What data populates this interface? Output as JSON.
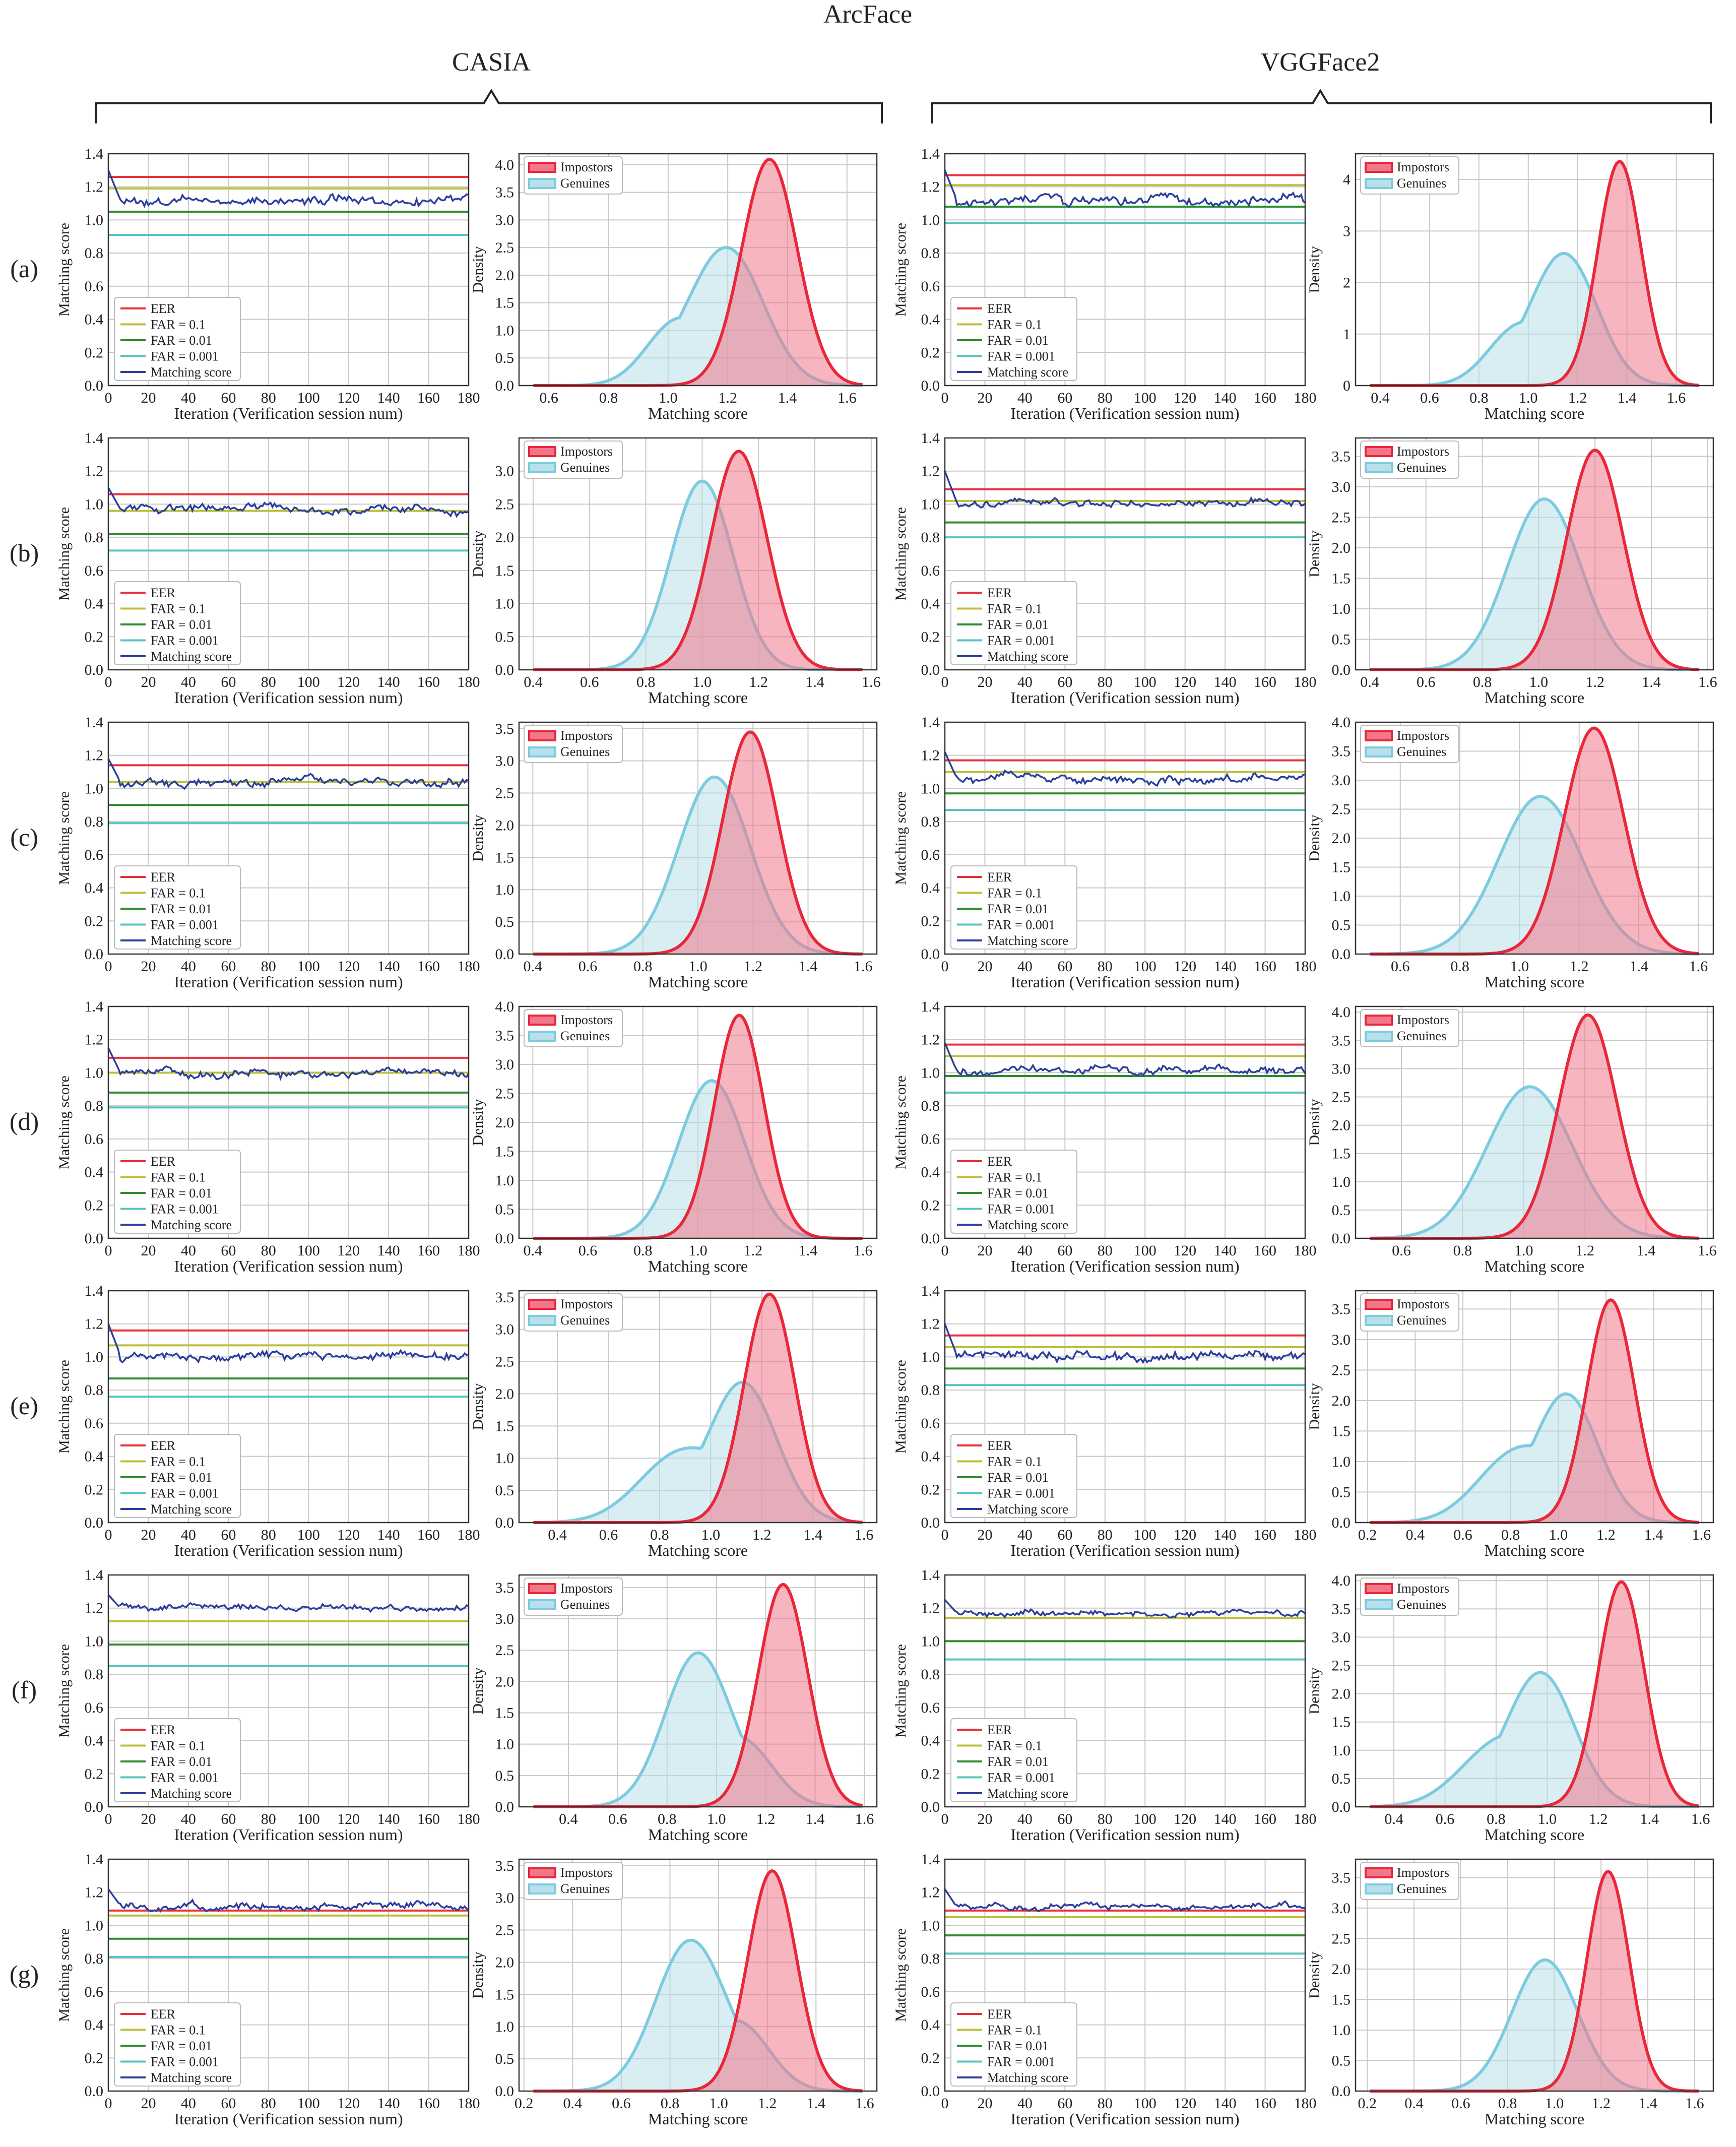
{
  "figure": {
    "title": "ArcFace",
    "groups": [
      "CASIA",
      "VGGFace2"
    ],
    "row_labels": [
      "(a)",
      "(b)",
      "(c)",
      "(d)",
      "(e)",
      "(f)",
      "(g)"
    ]
  },
  "colors": {
    "eer": "#e8303c",
    "far01": "#bcbf3a",
    "far001": "#2e8b2e",
    "far0001": "#55c4c0",
    "matching": "#2b3f9c",
    "impostor_fill": "#f0788a",
    "impostor_line": "#e8283a",
    "genuine_fill": "#b8e0ea",
    "genuine_line": "#7ecbe0",
    "grid": "#c8c8c8"
  },
  "line_axes": {
    "xlabel": "Iteration (Verification session num)",
    "ylabel": "Matching score",
    "xticks": [
      0,
      20,
      40,
      60,
      80,
      100,
      120,
      140,
      160,
      180
    ],
    "yticks": [
      0.0,
      0.2,
      0.4,
      0.6,
      0.8,
      1.0,
      1.2,
      1.4
    ],
    "xlim": [
      0,
      180
    ],
    "ylim": [
      0,
      1.4
    ],
    "legend": [
      "EER",
      "FAR = 0.1",
      "FAR = 0.01",
      "FAR = 0.001",
      "Matching score"
    ]
  },
  "density_axes": {
    "xlabel": "Matching score",
    "ylabel": "Density",
    "legend": [
      "Impostors",
      "Genuines"
    ]
  },
  "chart_data": [
    {
      "type": "line",
      "group": "CASIA",
      "row": "(a)",
      "thresholds": {
        "eer": 1.26,
        "far_0_1": 1.19,
        "far_0_01": 1.05,
        "far_0_001": 0.91
      },
      "matching_score": {
        "start": 1.3,
        "level": 1.12,
        "amp": 0.03
      }
    },
    {
      "type": "area",
      "group": "CASIA",
      "row": "(a)",
      "xlim": [
        0.5,
        1.7
      ],
      "xticks": [
        0.6,
        0.8,
        1.0,
        1.2,
        1.4,
        1.6
      ],
      "ylim": [
        0,
        4.2
      ],
      "yticks": [
        0.0,
        0.5,
        1.0,
        1.5,
        2.0,
        2.5,
        3.0,
        3.5,
        4.0
      ],
      "impostors": {
        "mu": 1.34,
        "sigma": 0.093,
        "peak": 4.1
      },
      "genuines": {
        "mu": 1.2,
        "sigma": 0.12,
        "peak": 2.45,
        "mu2": 1.02,
        "sigma2": 0.1,
        "peak2": 1.0
      }
    },
    {
      "type": "line",
      "group": "VGGFace2",
      "row": "(a)",
      "thresholds": {
        "eer": 1.27,
        "far_0_1": 1.21,
        "far_0_01": 1.08,
        "far_0_001": 0.98
      },
      "matching_score": {
        "start": 1.3,
        "level": 1.12,
        "amp": 0.03
      }
    },
    {
      "type": "area",
      "group": "VGGFace2",
      "row": "(a)",
      "xlim": [
        0.3,
        1.75
      ],
      "xticks": [
        0.4,
        0.6,
        0.8,
        1.0,
        1.2,
        1.4,
        1.6
      ],
      "ylim": [
        0,
        4.5
      ],
      "yticks": [
        0,
        1,
        2,
        3,
        4
      ],
      "impostors": {
        "mu": 1.37,
        "sigma": 0.088,
        "peak": 4.35
      },
      "genuines": {
        "mu": 1.15,
        "sigma": 0.13,
        "peak": 2.5,
        "mu2": 0.95,
        "sigma2": 0.12,
        "peak2": 1.0
      }
    },
    {
      "type": "line",
      "group": "CASIA",
      "row": "(b)",
      "thresholds": {
        "eer": 1.06,
        "far_0_1": 0.96,
        "far_0_01": 0.82,
        "far_0_001": 0.72
      },
      "matching_score": {
        "start": 1.1,
        "level": 0.97,
        "amp": 0.025
      }
    },
    {
      "type": "area",
      "group": "CASIA",
      "row": "(b)",
      "xlim": [
        0.35,
        1.62
      ],
      "xticks": [
        0.4,
        0.6,
        0.8,
        1.0,
        1.2,
        1.4,
        1.6
      ],
      "ylim": [
        0,
        3.5
      ],
      "yticks": [
        0.0,
        0.5,
        1.0,
        1.5,
        2.0,
        2.5,
        3.0
      ],
      "impostors": {
        "mu": 1.13,
        "sigma": 0.1,
        "peak": 3.3
      },
      "genuines": {
        "mu": 1.0,
        "sigma": 0.11,
        "peak": 2.85
      }
    },
    {
      "type": "line",
      "group": "VGGFace2",
      "row": "(b)",
      "thresholds": {
        "eer": 1.09,
        "far_0_1": 1.02,
        "far_0_01": 0.89,
        "far_0_001": 0.8
      },
      "matching_score": {
        "start": 1.2,
        "level": 1.01,
        "amp": 0.025
      }
    },
    {
      "type": "area",
      "group": "VGGFace2",
      "row": "(b)",
      "xlim": [
        0.35,
        1.62
      ],
      "xticks": [
        0.4,
        0.6,
        0.8,
        1.0,
        1.2,
        1.4,
        1.6
      ],
      "ylim": [
        0,
        3.8
      ],
      "yticks": [
        0.0,
        0.5,
        1.0,
        1.5,
        2.0,
        2.5,
        3.0,
        3.5
      ],
      "impostors": {
        "mu": 1.2,
        "sigma": 0.1,
        "peak": 3.6
      },
      "genuines": {
        "mu": 1.02,
        "sigma": 0.13,
        "peak": 2.8
      }
    },
    {
      "type": "line",
      "group": "CASIA",
      "row": "(c)",
      "thresholds": {
        "eer": 1.14,
        "far_0_1": 1.04,
        "far_0_01": 0.9,
        "far_0_001": 0.79
      },
      "matching_score": {
        "start": 1.18,
        "level": 1.04,
        "amp": 0.025
      }
    },
    {
      "type": "area",
      "group": "CASIA",
      "row": "(c)",
      "xlim": [
        0.35,
        1.65
      ],
      "xticks": [
        0.4,
        0.6,
        0.8,
        1.0,
        1.2,
        1.4,
        1.6
      ],
      "ylim": [
        0,
        3.6
      ],
      "yticks": [
        0.0,
        0.5,
        1.0,
        1.5,
        2.0,
        2.5,
        3.0,
        3.5
      ],
      "impostors": {
        "mu": 1.19,
        "sigma": 0.1,
        "peak": 3.45
      },
      "genuines": {
        "mu": 1.06,
        "sigma": 0.13,
        "peak": 2.75
      }
    },
    {
      "type": "line",
      "group": "VGGFace2",
      "row": "(c)",
      "thresholds": {
        "eer": 1.17,
        "far_0_1": 1.1,
        "far_0_01": 0.97,
        "far_0_001": 0.87
      },
      "matching_score": {
        "start": 1.22,
        "level": 1.06,
        "amp": 0.025
      }
    },
    {
      "type": "area",
      "group": "VGGFace2",
      "row": "(c)",
      "xlim": [
        0.45,
        1.65
      ],
      "xticks": [
        0.6,
        0.8,
        1.0,
        1.2,
        1.4,
        1.6
      ],
      "ylim": [
        0,
        4.0
      ],
      "yticks": [
        0.0,
        0.5,
        1.0,
        1.5,
        2.0,
        2.5,
        3.0,
        3.5,
        4.0
      ],
      "impostors": {
        "mu": 1.25,
        "sigma": 0.1,
        "peak": 3.9
      },
      "genuines": {
        "mu": 1.07,
        "sigma": 0.14,
        "peak": 2.72
      }
    },
    {
      "type": "line",
      "group": "CASIA",
      "row": "(d)",
      "thresholds": {
        "eer": 1.09,
        "far_0_1": 1.0,
        "far_0_01": 0.88,
        "far_0_001": 0.79
      },
      "matching_score": {
        "start": 1.15,
        "level": 1.0,
        "amp": 0.025
      }
    },
    {
      "type": "area",
      "group": "CASIA",
      "row": "(d)",
      "xlim": [
        0.35,
        1.65
      ],
      "xticks": [
        0.4,
        0.6,
        0.8,
        1.0,
        1.2,
        1.4,
        1.6
      ],
      "ylim": [
        0,
        4.0
      ],
      "yticks": [
        0.0,
        0.5,
        1.0,
        1.5,
        2.0,
        2.5,
        3.0,
        3.5,
        4.0
      ],
      "impostors": {
        "mu": 1.15,
        "sigma": 0.09,
        "peak": 3.85
      },
      "genuines": {
        "mu": 1.05,
        "sigma": 0.12,
        "peak": 2.72
      }
    },
    {
      "type": "line",
      "group": "VGGFace2",
      "row": "(d)",
      "thresholds": {
        "eer": 1.17,
        "far_0_1": 1.1,
        "far_0_01": 0.98,
        "far_0_001": 0.88
      },
      "matching_score": {
        "start": 1.18,
        "level": 1.01,
        "amp": 0.025
      }
    },
    {
      "type": "area",
      "group": "VGGFace2",
      "row": "(d)",
      "xlim": [
        0.45,
        1.62
      ],
      "xticks": [
        0.6,
        0.8,
        1.0,
        1.2,
        1.4,
        1.6
      ],
      "ylim": [
        0,
        4.1
      ],
      "yticks": [
        0.0,
        0.5,
        1.0,
        1.5,
        2.0,
        2.5,
        3.0,
        3.5,
        4.0
      ],
      "impostors": {
        "mu": 1.21,
        "sigma": 0.095,
        "peak": 3.95
      },
      "genuines": {
        "mu": 1.02,
        "sigma": 0.14,
        "peak": 2.68
      }
    },
    {
      "type": "line",
      "group": "CASIA",
      "row": "(e)",
      "thresholds": {
        "eer": 1.16,
        "far_0_1": 1.07,
        "far_0_01": 0.87,
        "far_0_001": 0.76
      },
      "matching_score": {
        "start": 1.2,
        "level": 1.01,
        "amp": 0.03
      }
    },
    {
      "type": "area",
      "group": "CASIA",
      "row": "(e)",
      "xlim": [
        0.25,
        1.65
      ],
      "xticks": [
        0.4,
        0.6,
        0.8,
        1.0,
        1.2,
        1.4,
        1.6
      ],
      "ylim": [
        0,
        3.6
      ],
      "yticks": [
        0.0,
        0.5,
        1.0,
        1.5,
        2.0,
        2.5,
        3.0,
        3.5
      ],
      "impostors": {
        "mu": 1.23,
        "sigma": 0.1,
        "peak": 3.55
      },
      "genuines": {
        "mu": 1.13,
        "sigma": 0.13,
        "peak": 2.1,
        "mu2": 0.88,
        "sigma2": 0.16,
        "peak2": 1.05
      }
    },
    {
      "type": "line",
      "group": "VGGFace2",
      "row": "(e)",
      "thresholds": {
        "eer": 1.13,
        "far_0_1": 1.06,
        "far_0_01": 0.93,
        "far_0_001": 0.83
      },
      "matching_score": {
        "start": 1.2,
        "level": 1.01,
        "amp": 0.03
      }
    },
    {
      "type": "area",
      "group": "VGGFace2",
      "row": "(e)",
      "xlim": [
        0.15,
        1.65
      ],
      "xticks": [
        0.2,
        0.4,
        0.6,
        0.8,
        1.0,
        1.2,
        1.4,
        1.6
      ],
      "ylim": [
        0,
        3.8
      ],
      "yticks": [
        0.0,
        0.5,
        1.0,
        1.5,
        2.0,
        2.5,
        3.0,
        3.5
      ],
      "impostors": {
        "mu": 1.22,
        "sigma": 0.1,
        "peak": 3.65
      },
      "genuines": {
        "mu": 1.04,
        "sigma": 0.13,
        "peak": 2.0,
        "mu2": 0.82,
        "sigma2": 0.16,
        "peak2": 1.1
      }
    },
    {
      "type": "line",
      "group": "CASIA",
      "row": "(f)",
      "thresholds": {
        "eer": 1.12,
        "far_0_1": 1.12,
        "far_0_01": 0.98,
        "far_0_001": 0.85
      },
      "matching_score": {
        "start": 1.28,
        "level": 1.2,
        "amp": 0.02
      }
    },
    {
      "type": "area",
      "group": "CASIA",
      "row": "(f)",
      "xlim": [
        0.2,
        1.65
      ],
      "xticks": [
        0.4,
        0.6,
        0.8,
        1.0,
        1.2,
        1.4,
        1.6
      ],
      "ylim": [
        0,
        3.7
      ],
      "yticks": [
        0.0,
        0.5,
        1.0,
        1.5,
        2.0,
        2.5,
        3.0,
        3.5
      ],
      "impostors": {
        "mu": 1.27,
        "sigma": 0.1,
        "peak": 3.55
      },
      "genuines": {
        "mu": 0.92,
        "sigma": 0.13,
        "peak": 2.4,
        "mu2": 1.12,
        "sigma2": 0.12,
        "peak2": 0.9
      }
    },
    {
      "type": "line",
      "group": "VGGFace2",
      "row": "(f)",
      "thresholds": {
        "eer": 1.14,
        "far_0_1": 1.14,
        "far_0_01": 1.0,
        "far_0_001": 0.89
      },
      "matching_score": {
        "start": 1.25,
        "level": 1.17,
        "amp": 0.02
      }
    },
    {
      "type": "area",
      "group": "VGGFace2",
      "row": "(f)",
      "xlim": [
        0.25,
        1.65
      ],
      "xticks": [
        0.4,
        0.6,
        0.8,
        1.0,
        1.2,
        1.4,
        1.6
      ],
      "ylim": [
        0,
        4.1
      ],
      "yticks": [
        0.0,
        0.5,
        1.0,
        1.5,
        2.0,
        2.5,
        3.0,
        3.5,
        4.0
      ],
      "impostors": {
        "mu": 1.29,
        "sigma": 0.09,
        "peak": 3.98
      },
      "genuines": {
        "mu": 0.98,
        "sigma": 0.13,
        "peak": 2.25,
        "mu2": 0.8,
        "sigma2": 0.15,
        "peak2": 1.0
      }
    },
    {
      "type": "line",
      "group": "CASIA",
      "row": "(g)",
      "thresholds": {
        "eer": 1.09,
        "far_0_1": 1.06,
        "far_0_01": 0.92,
        "far_0_001": 0.81
      },
      "matching_score": {
        "start": 1.22,
        "level": 1.12,
        "amp": 0.025
      }
    },
    {
      "type": "area",
      "group": "CASIA",
      "row": "(g)",
      "xlim": [
        0.18,
        1.65
      ],
      "xticks": [
        0.2,
        0.4,
        0.6,
        0.8,
        1.0,
        1.2,
        1.4,
        1.6
      ],
      "ylim": [
        0,
        3.6
      ],
      "yticks": [
        0.0,
        0.5,
        1.0,
        1.5,
        2.0,
        2.5,
        3.0,
        3.5
      ],
      "impostors": {
        "mu": 1.22,
        "sigma": 0.1,
        "peak": 3.42
      },
      "genuines": {
        "mu": 0.88,
        "sigma": 0.14,
        "peak": 2.3,
        "mu2": 1.1,
        "sigma2": 0.12,
        "peak2": 0.9
      }
    },
    {
      "type": "line",
      "group": "VGGFace2",
      "row": "(g)",
      "thresholds": {
        "eer": 1.09,
        "far_0_1": 1.05,
        "far_0_01": 0.94,
        "far_0_001": 0.83
      },
      "matching_score": {
        "start": 1.22,
        "level": 1.11,
        "amp": 0.02
      }
    },
    {
      "type": "area",
      "group": "VGGFace2",
      "row": "(g)",
      "xlim": [
        0.15,
        1.68
      ],
      "xticks": [
        0.2,
        0.4,
        0.6,
        0.8,
        1.0,
        1.2,
        1.4,
        1.6
      ],
      "ylim": [
        0,
        3.8
      ],
      "yticks": [
        0.0,
        0.5,
        1.0,
        1.5,
        2.0,
        2.5,
        3.0,
        3.5
      ],
      "impostors": {
        "mu": 1.23,
        "sigma": 0.09,
        "peak": 3.6
      },
      "genuines": {
        "mu": 0.96,
        "sigma": 0.14,
        "peak": 2.15
      }
    }
  ]
}
